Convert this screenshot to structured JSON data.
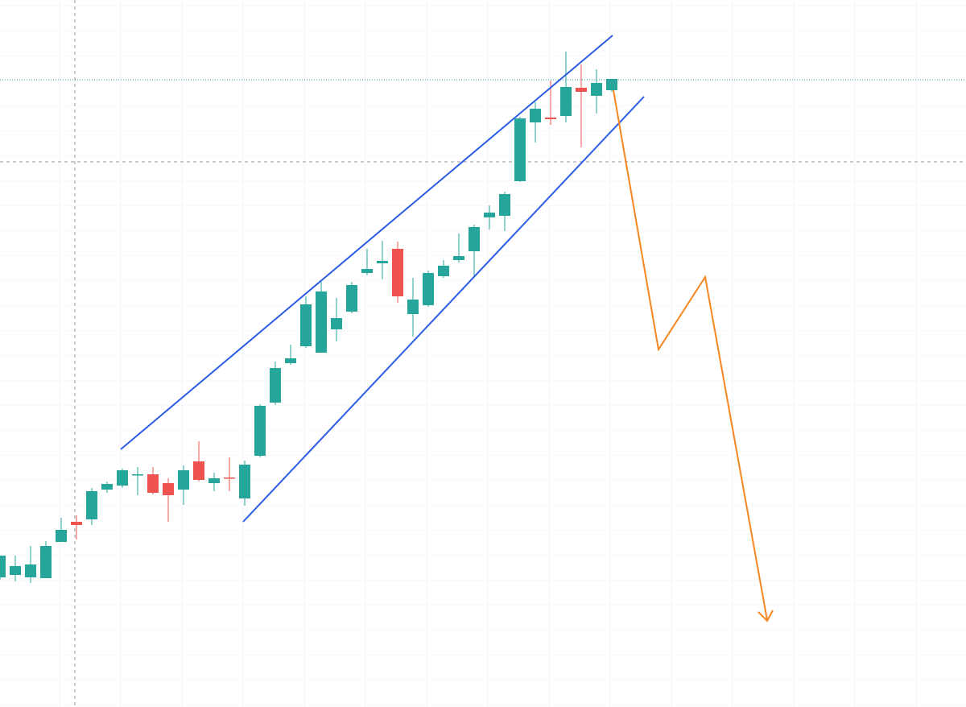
{
  "chart_data": {
    "type": "candlestick",
    "open": [
      161,
      164,
      161,
      160,
      205,
      230,
      233,
      270,
      275,
      289,
      289,
      278,
      270,
      305,
      278,
      285,
      259,
      312,
      378,
      427,
      448,
      440,
      469,
      491,
      539,
      551,
      569,
      488,
      499,
      535,
      555,
      566,
      608,
      610,
      653,
      726,
      732,
      734,
      769,
      759,
      766
    ],
    "high": [
      188,
      188,
      200,
      206,
      235,
      238,
      272,
      280,
      296,
      298,
      298,
      284,
      300,
      330,
      291,
      310,
      306,
      376,
      429,
      450,
      510,
      528,
      508,
      528,
      569,
      579,
      578,
      533,
      542,
      555,
      588,
      599,
      623,
      640,
      733,
      751,
      778,
      814,
      798,
      792,
      780
    ],
    "low": [
      158,
      156,
      154,
      160,
      205,
      208,
      226,
      266,
      272,
      263,
      264,
      230,
      251,
      280,
      268,
      268,
      250,
      310,
      375,
      425,
      446,
      440,
      454,
      489,
      536,
      531,
      502,
      460,
      497,
      533,
      552,
      533,
      593,
      591,
      652,
      701,
      723,
      726,
      695,
      737,
      764
    ],
    "close": [
      188,
      175,
      177,
      200,
      220,
      226,
      268,
      277,
      294,
      289,
      266,
      263,
      294,
      282,
      284,
      284,
      301,
      374,
      421,
      433,
      500,
      516,
      483,
      524,
      544,
      554,
      510,
      506,
      539,
      548,
      560,
      596,
      614,
      637,
      731,
      743,
      730,
      770,
      764,
      775,
      780
    ],
    "up_color": "#26a69a",
    "down_color": "#ef5350",
    "ylim": [
      0,
      878
    ],
    "grid": true
  }
}
